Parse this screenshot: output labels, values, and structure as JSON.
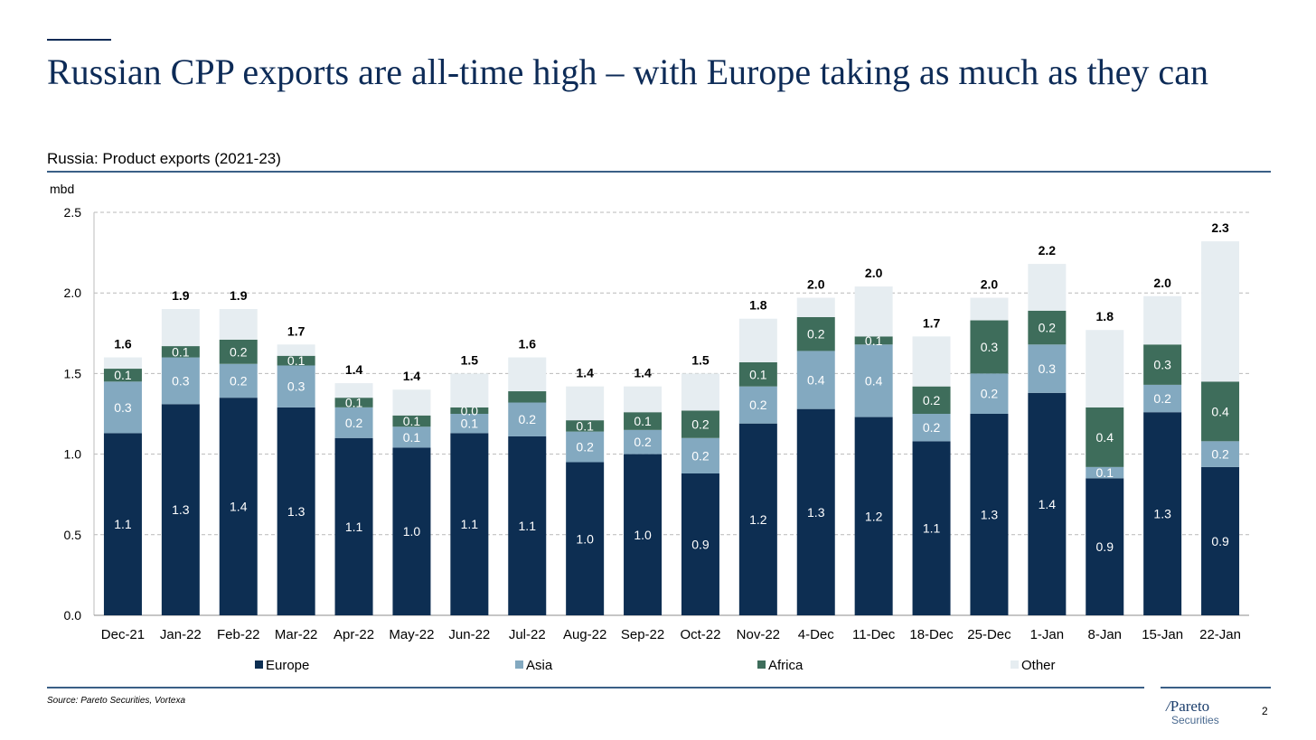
{
  "page": {
    "title": "Russian CPP exports are all-time high – with Europe taking as much as they can",
    "subtitle": "Russia: Product exports (2021-23)",
    "source": "Source: Pareto Securities, Vortexa",
    "logo": {
      "name": "Pareto",
      "sub": "Securities"
    },
    "page_number": "2"
  },
  "chart_data": {
    "type": "bar",
    "stacked": true,
    "ylabel": "mbd",
    "ylim": [
      0,
      2.5
    ],
    "yticks": [
      "0.0",
      "0.5",
      "1.0",
      "1.5",
      "2.0",
      "2.5"
    ],
    "grid": true,
    "legend_position": "bottom",
    "categories": [
      "Dec-21",
      "Jan-22",
      "Feb-22",
      "Mar-22",
      "Apr-22",
      "May-22",
      "Jun-22",
      "Jul-22",
      "Aug-22",
      "Sep-22",
      "Oct-22",
      "Nov-22",
      "4-Dec",
      "11-Dec",
      "18-Dec",
      "25-Dec",
      "1-Jan",
      "8-Jan",
      "15-Jan",
      "22-Jan"
    ],
    "series": [
      {
        "name": "Europe",
        "color": "#0d2e52",
        "label_color": "#ffffff",
        "values": [
          1.13,
          1.31,
          1.35,
          1.29,
          1.1,
          1.04,
          1.13,
          1.11,
          0.95,
          1.0,
          0.88,
          1.19,
          1.28,
          1.23,
          1.08,
          1.25,
          1.38,
          0.85,
          1.26,
          0.92
        ],
        "labels": [
          "1.1",
          "1.3",
          "1.4",
          "1.3",
          "1.1",
          "1.0",
          "1.1",
          "1.1",
          "1.0",
          "1.0",
          "0.9",
          "1.2",
          "1.3",
          "1.2",
          "1.1",
          "1.3",
          "1.4",
          "0.9",
          "1.3",
          "0.9"
        ]
      },
      {
        "name": "Asia",
        "color": "#83a9c0",
        "label_color": "#ffffff",
        "values": [
          0.32,
          0.29,
          0.21,
          0.26,
          0.19,
          0.13,
          0.12,
          0.21,
          0.19,
          0.15,
          0.22,
          0.23,
          0.36,
          0.45,
          0.17,
          0.25,
          0.3,
          0.07,
          0.17,
          0.16
        ],
        "labels": [
          "0.3",
          "0.3",
          "0.2",
          "0.3",
          "0.2",
          "0.1",
          "0.1",
          "0.2",
          "0.2",
          "0.2",
          "0.2",
          "0.2",
          "0.4",
          "0.4",
          "0.2",
          "0.2",
          "0.3",
          "0.1",
          "0.2",
          "0.2"
        ]
      },
      {
        "name": "Africa",
        "color": "#3e6d5b",
        "label_color": "#ffffff",
        "values": [
          0.08,
          0.07,
          0.15,
          0.06,
          0.06,
          0.07,
          0.04,
          0.07,
          0.07,
          0.11,
          0.17,
          0.15,
          0.21,
          0.05,
          0.17,
          0.33,
          0.21,
          0.37,
          0.25,
          0.37
        ],
        "labels": [
          "0.1",
          "0.1",
          "0.2",
          "0.1",
          "0.1",
          "0.1",
          "0.0",
          "",
          "0.1",
          "0.1",
          "0.2",
          "0.1",
          "0.2",
          "0.1",
          "0.2",
          "0.3",
          "0.2",
          "0.4",
          "0.3",
          "0.4"
        ]
      },
      {
        "name": "Other",
        "color": "#e6edf1",
        "label_color": "#000000",
        "values": [
          0.07,
          0.23,
          0.19,
          0.07,
          0.09,
          0.16,
          0.21,
          0.21,
          0.21,
          0.16,
          0.23,
          0.27,
          0.12,
          0.31,
          0.31,
          0.14,
          0.29,
          0.48,
          0.3,
          0.87
        ],
        "labels": [
          "",
          "",
          "",
          "",
          "",
          "",
          "",
          "",
          "",
          "",
          "",
          "",
          "",
          "",
          "",
          "",
          "",
          "",
          "",
          ""
        ]
      }
    ],
    "totals": [
      "1.6",
      "1.9",
      "1.9",
      "1.7",
      "1.4",
      "1.4",
      "1.5",
      "1.6",
      "1.4",
      "1.4",
      "1.5",
      "1.8",
      "2.0",
      "2.0",
      "1.7",
      "2.0",
      "2.2",
      "1.8",
      "2.0",
      "2.3"
    ]
  }
}
